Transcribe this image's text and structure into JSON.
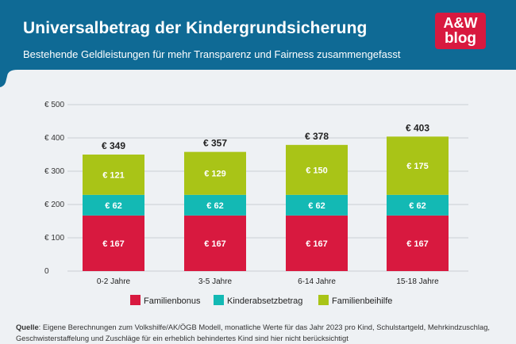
{
  "header": {
    "title": "Universalbetrag der Kindergrundsicherung",
    "subtitle": "Bestehende Geldleistungen für mehr Transparenz und Fairness zusammengefasst",
    "logo_line1": "A&W",
    "logo_line2": "blog"
  },
  "colors": {
    "header_bg": "#0f6a95",
    "familienbonus": "#d8193f",
    "kinderabsetzbetrag": "#13b9b4",
    "familienbeihilfe": "#a9c417",
    "logo_bg": "#d8193f"
  },
  "footer": {
    "source_label": "Quelle",
    "source_text": ": Eigene Berechnungen zum Volkshilfe/AK/ÖGB Modell, monatliche Werte für das Jahr 2023 pro Kind, Schulstartgeld, Mehrkindzuschlag, Geschwisterstaffelung und Zuschläge für ein erheblich behindertes Kind sind hier nicht berücksichtigt"
  },
  "chart_data": {
    "type": "bar",
    "stacked": true,
    "categories": [
      "0-2 Jahre",
      "3-5 Jahre",
      "6-14 Jahre",
      "15-18 Jahre"
    ],
    "series": [
      {
        "name": "Familienbonus",
        "color": "#d8193f",
        "values": [
          167,
          167,
          167,
          167
        ],
        "labels": [
          "€ 167",
          "€ 167",
          "€ 167",
          "€ 167"
        ]
      },
      {
        "name": "Kinderabsetzbetrag",
        "color": "#13b9b4",
        "values": [
          62,
          62,
          62,
          62
        ],
        "labels": [
          "€ 62",
          "€ 62",
          "€ 62",
          "€ 62"
        ]
      },
      {
        "name": "Familienbeihilfe",
        "color": "#a9c417",
        "values": [
          121,
          129,
          150,
          175
        ],
        "labels": [
          "€ 121",
          "€ 129",
          "€ 150",
          "€ 175"
        ]
      }
    ],
    "totals": [
      349,
      357,
      378,
      403
    ],
    "total_labels": [
      "€ 349",
      "€ 357",
      "€ 378",
      "€ 403"
    ],
    "ylim": [
      0,
      500
    ],
    "yticks": [
      0,
      100,
      200,
      300,
      400,
      500
    ],
    "ytick_labels": [
      "0",
      "€ 100",
      "€ 200",
      "€ 300",
      "€ 400",
      "€ 500"
    ],
    "legend_position": "bottom",
    "grid": true,
    "title": "Universalbetrag der Kindergrundsicherung",
    "xlabel": "",
    "ylabel": ""
  }
}
